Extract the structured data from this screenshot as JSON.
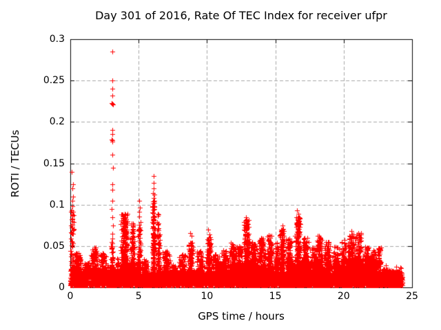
{
  "colors": {
    "marker": "#ff0000",
    "grid": "#a8a8a8",
    "axis": "#000000",
    "text": "#000000",
    "background": "#ffffff"
  },
  "chart_data": {
    "type": "scatter",
    "title": "Day 301 of 2016, Rate Of TEC Index for receiver ufpr",
    "xlabel": "GPS time / hours",
    "ylabel": "ROTI / TECUs",
    "xlim": [
      0,
      25
    ],
    "ylim": [
      0,
      0.3
    ],
    "xtick_values": [
      0,
      5,
      10,
      15,
      20,
      25
    ],
    "xtick_labels": [
      "0",
      "5",
      "10",
      "15",
      "20",
      "25"
    ],
    "ytick_values": [
      0,
      0.05,
      0.1,
      0.15,
      0.2,
      0.25,
      0.3
    ],
    "ytick_labels": [
      "0",
      "0.05",
      "0.1",
      "0.15",
      "0.2",
      "0.25",
      "0.3"
    ],
    "grid": true,
    "legend": "none",
    "marker": {
      "shape": "plus",
      "color": "#ff0000",
      "size": 7
    },
    "series_name": "ROTI",
    "data_time_range_hours": [
      0.0,
      24.3
    ],
    "seed": 12345,
    "baseline": {
      "count": 6000,
      "min": 0.0025,
      "band": 0.016,
      "tail_prob": 0.08,
      "tail": 0.014
    },
    "activity_bumps": [
      [
        0.15,
        0.15,
        0.095,
        80
      ],
      [
        0.55,
        0.35,
        0.042,
        120
      ],
      [
        1.2,
        0.3,
        0.03,
        90
      ],
      [
        1.75,
        0.3,
        0.05,
        130
      ],
      [
        2.4,
        0.3,
        0.042,
        110
      ],
      [
        3.06,
        0.09,
        0.06,
        70
      ],
      [
        3.45,
        0.12,
        0.035,
        40
      ],
      [
        3.95,
        0.3,
        0.09,
        260
      ],
      [
        4.55,
        0.18,
        0.078,
        110
      ],
      [
        5.05,
        0.13,
        0.08,
        80
      ],
      [
        5.5,
        0.25,
        0.035,
        60
      ],
      [
        2.0,
        1.8,
        0.022,
        250
      ],
      [
        4.5,
        0.8,
        0.03,
        150
      ],
      [
        6.1,
        0.13,
        0.105,
        150
      ],
      [
        6.45,
        0.15,
        0.09,
        90
      ],
      [
        7.0,
        0.3,
        0.045,
        110
      ],
      [
        7.6,
        0.25,
        0.028,
        60
      ],
      [
        8.2,
        0.3,
        0.04,
        90
      ],
      [
        8.8,
        0.2,
        0.055,
        110
      ],
      [
        9.5,
        0.3,
        0.045,
        100
      ],
      [
        8.5,
        1.5,
        0.02,
        200
      ],
      [
        10.15,
        0.2,
        0.062,
        130
      ],
      [
        10.7,
        0.3,
        0.04,
        100
      ],
      [
        11.3,
        0.3,
        0.045,
        110
      ],
      [
        11.9,
        0.3,
        0.055,
        130
      ],
      [
        12.4,
        0.2,
        0.05,
        100
      ],
      [
        12.9,
        0.22,
        0.082,
        220
      ],
      [
        13.4,
        0.3,
        0.055,
        130
      ],
      [
        14.0,
        0.3,
        0.06,
        140
      ],
      [
        14.6,
        0.25,
        0.063,
        140
      ],
      [
        12.5,
        2.0,
        0.03,
        400
      ],
      [
        15.1,
        0.2,
        0.055,
        110
      ],
      [
        15.5,
        0.18,
        0.072,
        140
      ],
      [
        16.0,
        0.25,
        0.06,
        130
      ],
      [
        16.65,
        0.22,
        0.085,
        200
      ],
      [
        17.2,
        0.25,
        0.06,
        130
      ],
      [
        17.8,
        0.3,
        0.05,
        110
      ],
      [
        18.25,
        0.25,
        0.063,
        140
      ],
      [
        18.8,
        0.3,
        0.055,
        120
      ],
      [
        19.4,
        0.3,
        0.05,
        110
      ],
      [
        17.3,
        2.2,
        0.032,
        450
      ],
      [
        20.0,
        0.25,
        0.058,
        120
      ],
      [
        20.55,
        0.3,
        0.065,
        150
      ],
      [
        21.1,
        0.3,
        0.066,
        150
      ],
      [
        21.7,
        0.3,
        0.05,
        110
      ],
      [
        22.2,
        0.25,
        0.045,
        90
      ],
      [
        22.6,
        0.2,
        0.05,
        70
      ],
      [
        21.0,
        1.5,
        0.035,
        400
      ],
      [
        23.2,
        0.4,
        0.022,
        120
      ],
      [
        23.8,
        0.4,
        0.02,
        100
      ]
    ],
    "notable_points": [
      [
        3.07,
        0.285
      ],
      [
        3.05,
        0.25
      ],
      [
        3.09,
        0.24
      ],
      [
        3.06,
        0.232
      ],
      [
        3.03,
        0.223
      ],
      [
        3.07,
        0.222
      ],
      [
        3.1,
        0.221
      ],
      [
        3.05,
        0.19
      ],
      [
        3.08,
        0.185
      ],
      [
        3.04,
        0.179
      ],
      [
        3.07,
        0.178
      ],
      [
        3.06,
        0.176
      ],
      [
        3.05,
        0.16
      ],
      [
        3.11,
        0.145
      ],
      [
        3.07,
        0.125
      ],
      [
        3.05,
        0.118
      ],
      [
        3.09,
        0.105
      ],
      [
        3.04,
        0.095
      ],
      [
        3.08,
        0.085
      ],
      [
        3.1,
        0.075
      ],
      [
        3.06,
        0.065
      ],
      [
        0.12,
        0.14
      ],
      [
        0.18,
        0.125
      ],
      [
        0.14,
        0.12
      ],
      [
        0.2,
        0.11
      ],
      [
        0.16,
        0.105
      ],
      [
        0.13,
        0.098
      ],
      [
        0.19,
        0.091
      ],
      [
        0.15,
        0.087
      ],
      [
        0.17,
        0.083
      ],
      [
        0.14,
        0.072
      ],
      [
        0.21,
        0.065
      ],
      [
        5.05,
        0.105
      ],
      [
        5.08,
        0.096
      ],
      [
        5.02,
        0.091
      ],
      [
        5.06,
        0.086
      ],
      [
        6.08,
        0.135
      ],
      [
        6.12,
        0.126
      ],
      [
        6.1,
        0.12
      ],
      [
        6.07,
        0.114
      ],
      [
        6.13,
        0.112
      ],
      [
        6.1,
        0.108
      ],
      [
        6.05,
        0.101
      ],
      [
        6.12,
        0.098
      ],
      [
        6.09,
        0.094
      ],
      [
        8.78,
        0.066
      ],
      [
        8.85,
        0.062
      ],
      [
        10.1,
        0.07
      ],
      [
        10.2,
        0.064
      ],
      [
        12.86,
        0.085
      ],
      [
        12.92,
        0.081
      ],
      [
        12.89,
        0.077
      ],
      [
        15.5,
        0.075
      ],
      [
        15.55,
        0.071
      ],
      [
        16.6,
        0.093
      ],
      [
        16.7,
        0.089
      ],
      [
        16.65,
        0.084
      ],
      [
        20.55,
        0.068
      ],
      [
        20.7,
        0.064
      ],
      [
        21.05,
        0.066
      ]
    ]
  }
}
